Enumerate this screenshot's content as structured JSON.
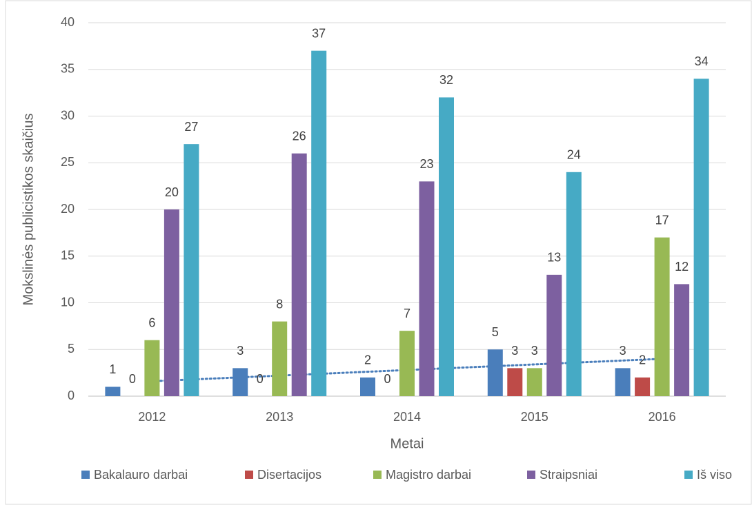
{
  "chart_data": {
    "type": "bar",
    "y_label": "Mokslinės publicistikos skaičius",
    "x_label": "Metai",
    "categories": [
      "2012",
      "2013",
      "2014",
      "2015",
      "2016"
    ],
    "series": [
      {
        "name": "Bakalauro darbai",
        "color": "#4a7ebb",
        "values": [
          1,
          3,
          2,
          5,
          3
        ],
        "trendline": "linear"
      },
      {
        "name": "Disertacijos",
        "color": "#be4b48",
        "values": [
          0,
          0,
          0,
          3,
          2
        ]
      },
      {
        "name": "Magistro darbai",
        "color": "#98b954",
        "values": [
          6,
          8,
          7,
          3,
          17
        ]
      },
      {
        "name": "Straipsniai",
        "color": "#7d60a0",
        "values": [
          20,
          26,
          23,
          13,
          12
        ]
      },
      {
        "name": "Iš viso",
        "color": "#46aac5",
        "values": [
          27,
          37,
          32,
          24,
          34
        ]
      }
    ],
    "ylim": [
      0,
      40
    ],
    "yticks": [
      0,
      5,
      10,
      15,
      20,
      25,
      30,
      35,
      40
    ],
    "grid": true,
    "legend": "bottom"
  }
}
